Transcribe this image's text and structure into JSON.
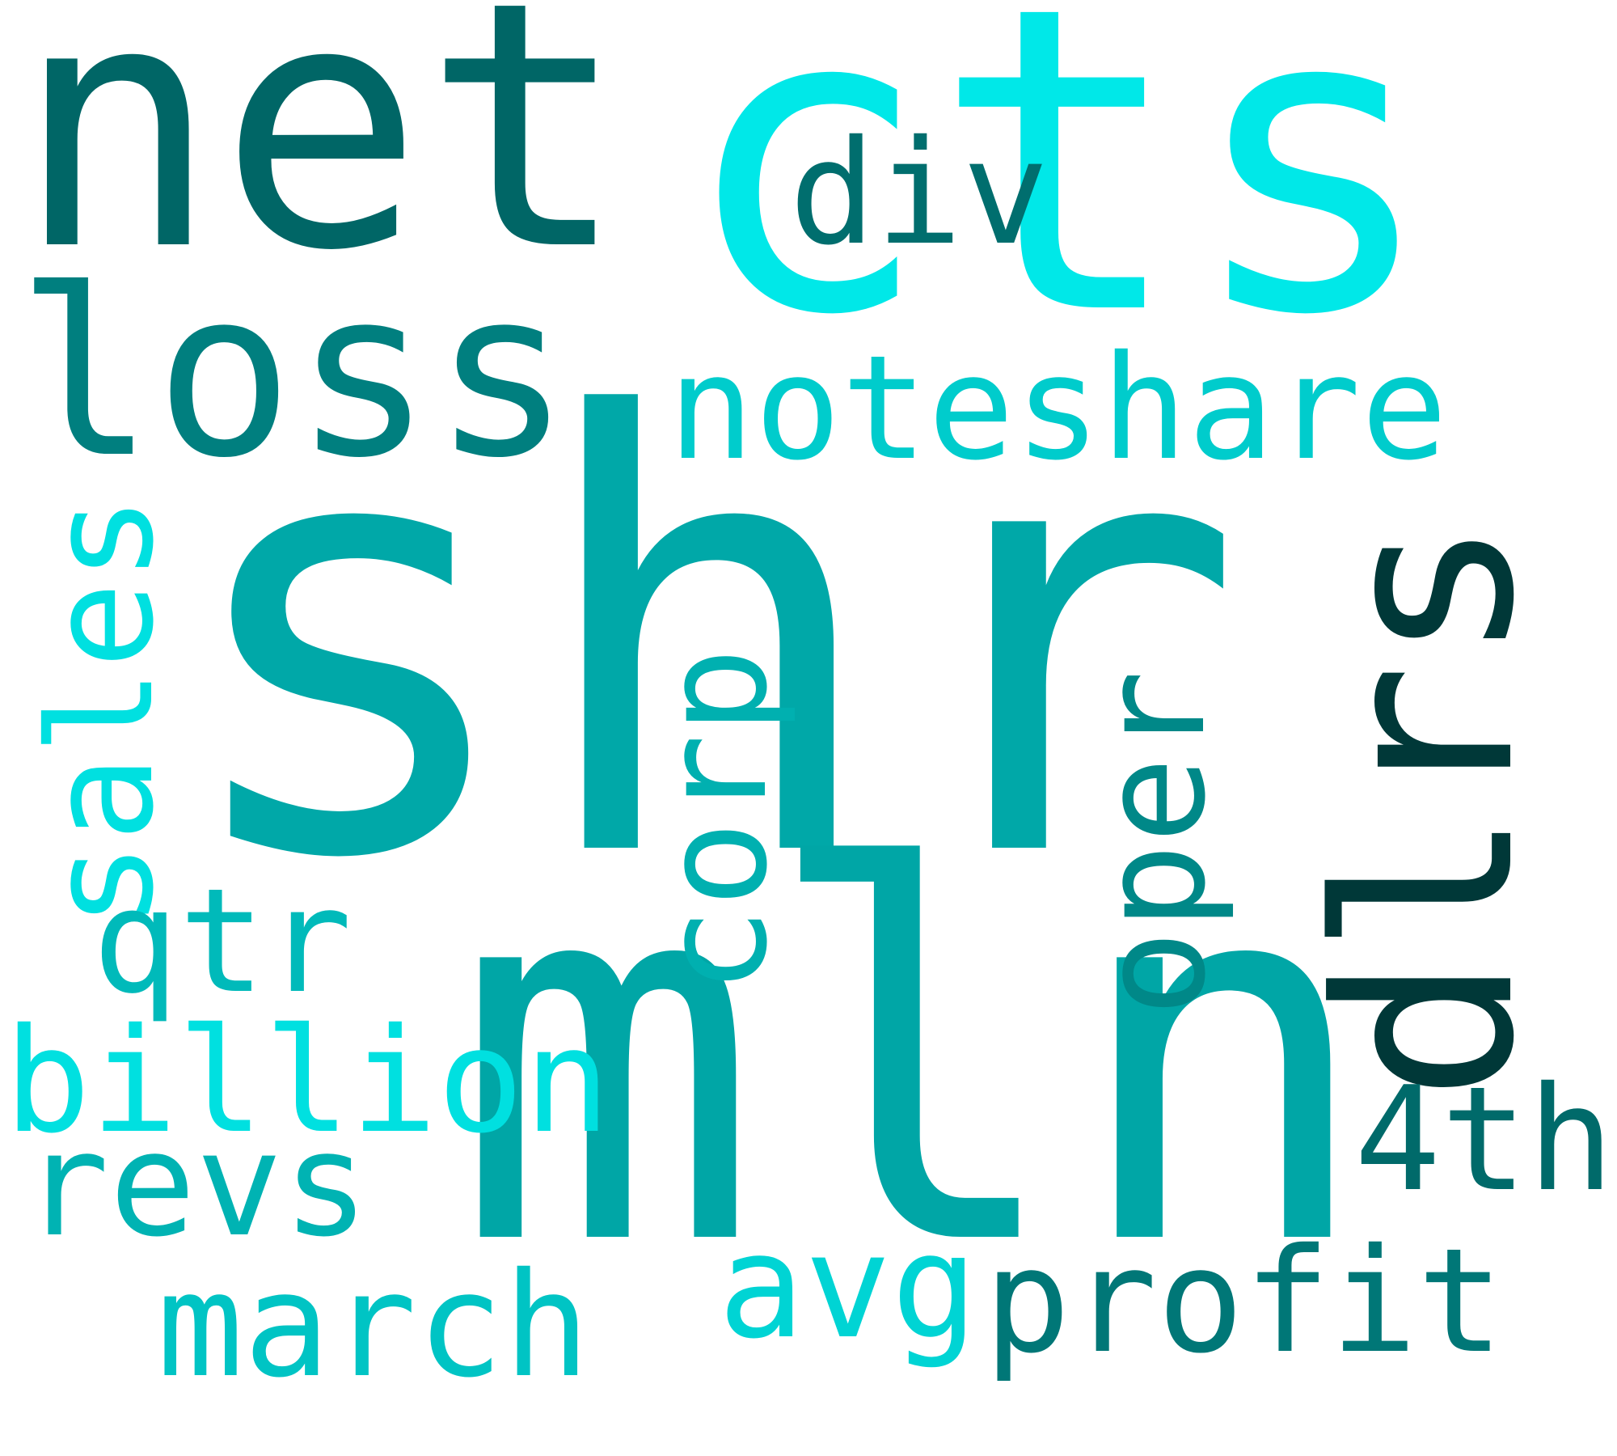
{
  "words": {
    "shr": {
      "text": "shr",
      "color": "#00a8a8"
    },
    "mln": {
      "text": "mln",
      "color": "#00a6a6"
    },
    "cts": {
      "text": "cts",
      "color": "#00e8e8"
    },
    "net": {
      "text": "net",
      "color": "#006666"
    },
    "dlrs": {
      "text": "dlrs",
      "color": "#003838"
    },
    "loss": {
      "text": "loss",
      "color": "#007f7f"
    },
    "div": {
      "text": "div",
      "color": "#006e6e"
    },
    "noteshare": {
      "text": "noteshare",
      "color": "#00cccc"
    },
    "sales": {
      "text": "sales",
      "color": "#00e0e0"
    },
    "corp": {
      "text": "corp",
      "color": "#00b0b0"
    },
    "oper": {
      "text": "oper",
      "color": "#008888"
    },
    "qtr": {
      "text": "qtr",
      "color": "#00baba"
    },
    "billion": {
      "text": "billion",
      "color": "#00e0e0"
    },
    "revs": {
      "text": "revs",
      "color": "#00b3b3"
    },
    "4th": {
      "text": "4th",
      "color": "#006a6a"
    },
    "march": {
      "text": "march",
      "color": "#00c4c4"
    },
    "avg": {
      "text": "avg",
      "color": "#00d4d4"
    },
    "profit": {
      "text": "profit",
      "color": "#007777"
    }
  }
}
